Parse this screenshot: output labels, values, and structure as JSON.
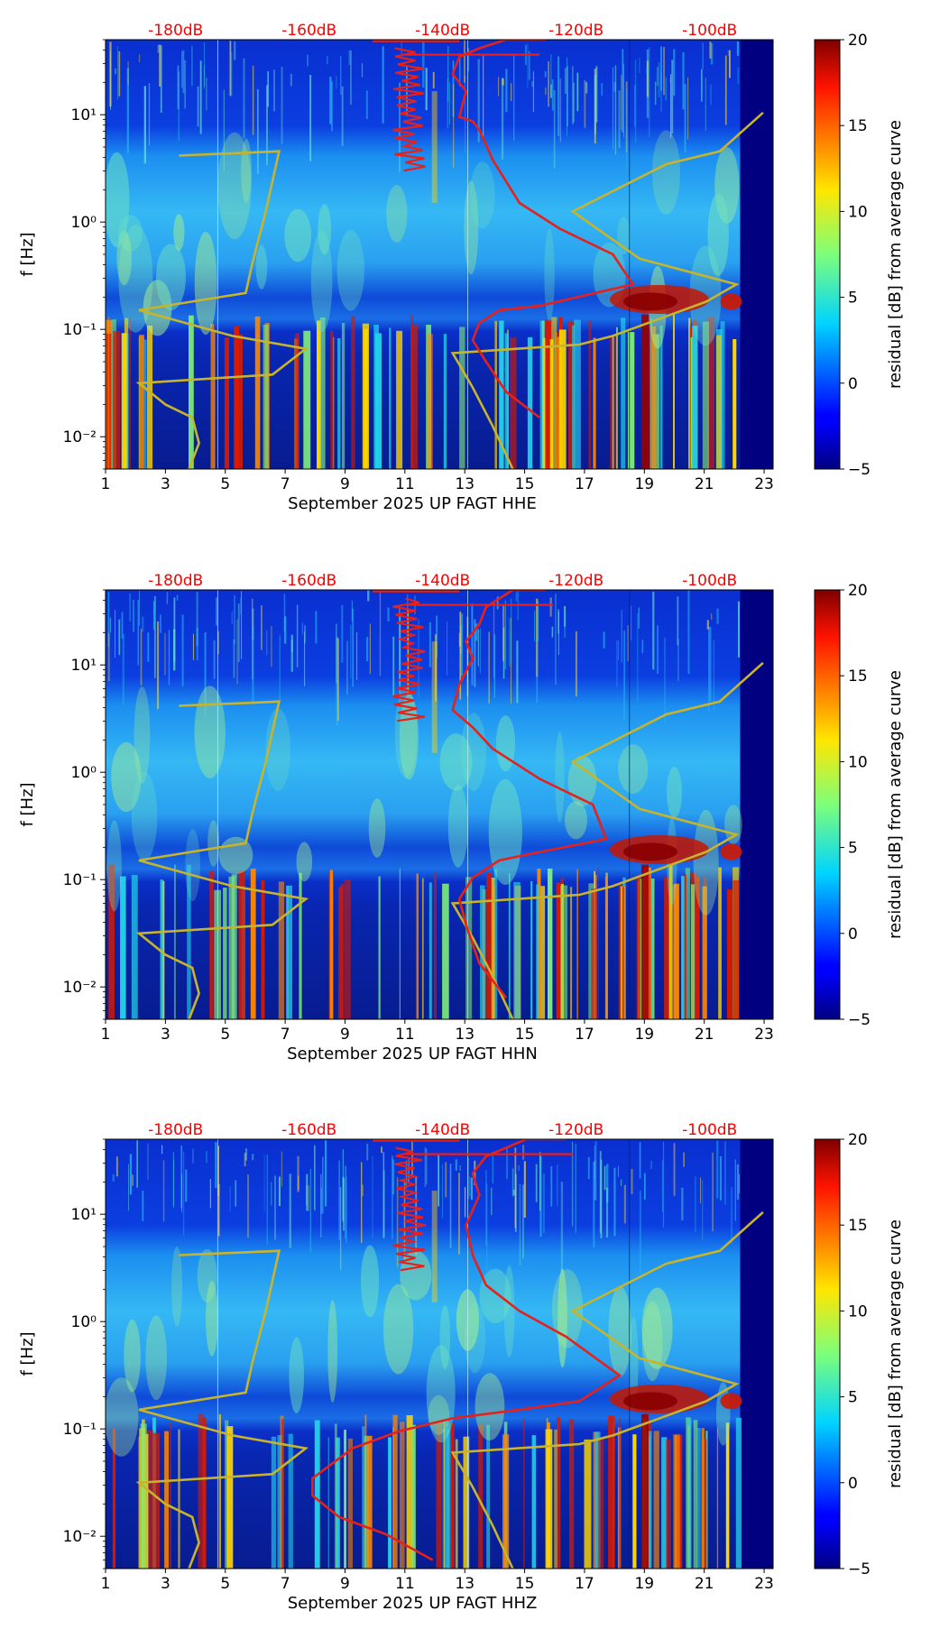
{
  "chart_data": [
    {
      "type": "heatmap",
      "channel": "HHE",
      "title": "",
      "xlabel": "September 2025 UP FAGT  HHE",
      "ylabel": "f [Hz]",
      "xticks": [
        "1",
        "3",
        "5",
        "7",
        "9",
        "11",
        "13",
        "15",
        "17",
        "19",
        "21",
        "23"
      ],
      "xlim": [
        1,
        23.3
      ],
      "yticks": [
        "10⁻²",
        "10⁻¹",
        "10⁰",
        "10¹"
      ],
      "ylim": [
        0.005,
        50
      ],
      "top_axis_color": "#ff0000",
      "top_axis_ticks": [
        "-180dB",
        "-160dB",
        "-140dB",
        "-120dB",
        "-100dB"
      ],
      "colorbar": {
        "label": "residual [dB] from average curve",
        "ticks": [
          "20",
          "15",
          "10",
          "5",
          "0",
          "−5"
        ],
        "range": [
          -5,
          20
        ]
      },
      "noise_model_color": "#c8b42a",
      "psd_curve_color": "#e8201a"
    },
    {
      "type": "heatmap",
      "channel": "HHN",
      "title": "",
      "xlabel": "September 2025 UP FAGT  HHN",
      "ylabel": "f [Hz]",
      "xticks": [
        "1",
        "3",
        "5",
        "7",
        "9",
        "11",
        "13",
        "15",
        "17",
        "19",
        "21",
        "23"
      ],
      "xlim": [
        1,
        23.3
      ],
      "yticks": [
        "10⁻²",
        "10⁻¹",
        "10⁰",
        "10¹"
      ],
      "ylim": [
        0.005,
        50
      ],
      "top_axis_color": "#ff0000",
      "top_axis_ticks": [
        "-180dB",
        "-160dB",
        "-140dB",
        "-120dB",
        "-100dB"
      ],
      "colorbar": {
        "label": "residual [dB] from average curve",
        "ticks": [
          "20",
          "15",
          "10",
          "5",
          "0",
          "−5"
        ],
        "range": [
          -5,
          20
        ]
      },
      "noise_model_color": "#c8b42a",
      "psd_curve_color": "#e8201a"
    },
    {
      "type": "heatmap",
      "channel": "HHZ",
      "title": "",
      "xlabel": "September 2025 UP FAGT  HHZ",
      "ylabel": "f [Hz]",
      "xticks": [
        "1",
        "3",
        "5",
        "7",
        "9",
        "11",
        "13",
        "15",
        "17",
        "19",
        "21",
        "23"
      ],
      "xlim": [
        1,
        23.3
      ],
      "yticks": [
        "10⁻²",
        "10⁻¹",
        "10⁰",
        "10¹"
      ],
      "ylim": [
        0.005,
        50
      ],
      "top_axis_color": "#ff0000",
      "top_axis_ticks": [
        "-180dB",
        "-160dB",
        "-140dB",
        "-120dB",
        "-100dB"
      ],
      "colorbar": {
        "label": "residual [dB] from average curve",
        "ticks": [
          "20",
          "15",
          "10",
          "5",
          "0",
          "−5"
        ],
        "range": [
          -5,
          20
        ]
      },
      "noise_model_color": "#c8b42a",
      "psd_curve_color": "#e8201a"
    }
  ]
}
